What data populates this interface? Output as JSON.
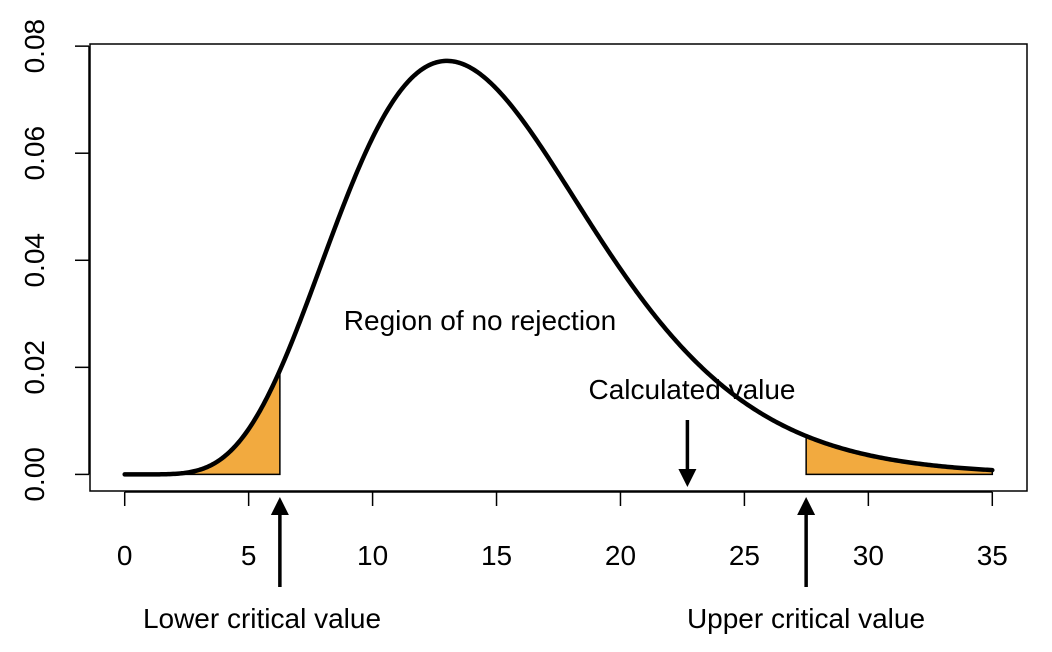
{
  "chart_data": {
    "type": "area",
    "title": "",
    "xlabel": "",
    "ylabel": "",
    "xlim": [
      -1.4,
      36.4
    ],
    "ylim": [
      -0.0031,
      0.0804
    ],
    "x_ticks": [
      0,
      5,
      10,
      15,
      20,
      25,
      30,
      35
    ],
    "y_ticks": [
      0.0,
      0.02,
      0.04,
      0.06,
      0.08
    ],
    "y_tick_labels": [
      "0.00",
      "0.02",
      "0.04",
      "0.06",
      "0.08"
    ],
    "grid": false,
    "curve": {
      "distribution": "chi-square",
      "df": 15,
      "x_range": [
        0,
        35
      ],
      "peak": {
        "x": 13,
        "y": 0.077
      }
    },
    "critical_values": {
      "lower": 6.26,
      "upper": 27.49
    },
    "calculated_value": 22.7,
    "shaded_regions": [
      {
        "name": "lower-rejection",
        "from": 0,
        "to": 6.26
      },
      {
        "name": "upper-rejection",
        "from": 27.49,
        "to": 35
      }
    ],
    "colors": {
      "shade": "#F2AA3F",
      "curve": "#000000"
    },
    "annotations": {
      "region": "Region of no rejection",
      "calculated": "Calculated value",
      "lower": "Lower critical value",
      "upper": "Upper critical value"
    }
  }
}
